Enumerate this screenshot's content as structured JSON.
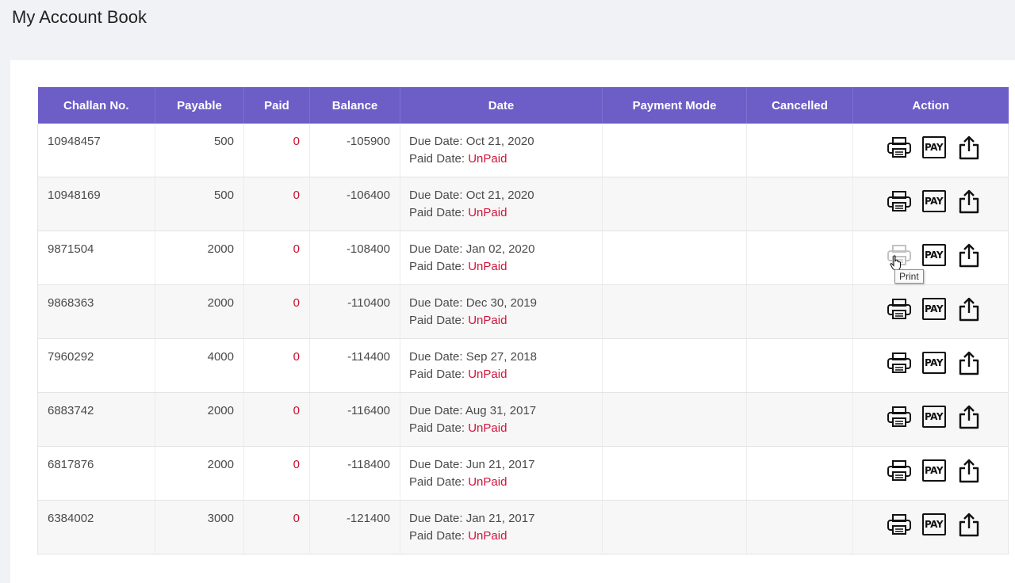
{
  "page": {
    "title": "My Account Book"
  },
  "table": {
    "headers": {
      "challan": "Challan No.",
      "payable": "Payable",
      "paid": "Paid",
      "balance": "Balance",
      "date": "Date",
      "payment_mode": "Payment Mode",
      "cancelled": "Cancelled",
      "action": "Action"
    },
    "due_label": "Due Date: ",
    "paid_label": "Paid Date: ",
    "pay_label": "PAY",
    "rows": [
      {
        "challan": "10948457",
        "payable": "500",
        "paid": "0",
        "balance": "-105900",
        "due_date": "Oct 21, 2020",
        "paid_date": "UnPaid",
        "payment_mode": "",
        "cancelled": ""
      },
      {
        "challan": "10948169",
        "payable": "500",
        "paid": "0",
        "balance": "-106400",
        "due_date": "Oct 21, 2020",
        "paid_date": "UnPaid",
        "payment_mode": "",
        "cancelled": ""
      },
      {
        "challan": "9871504",
        "payable": "2000",
        "paid": "0",
        "balance": "-108400",
        "due_date": "Jan 02, 2020",
        "paid_date": "UnPaid",
        "payment_mode": "",
        "cancelled": ""
      },
      {
        "challan": "9868363",
        "payable": "2000",
        "paid": "0",
        "balance": "-110400",
        "due_date": "Dec 30, 2019",
        "paid_date": "UnPaid",
        "payment_mode": "",
        "cancelled": ""
      },
      {
        "challan": "7960292",
        "payable": "4000",
        "paid": "0",
        "balance": "-114400",
        "due_date": "Sep 27, 2018",
        "paid_date": "UnPaid",
        "payment_mode": "",
        "cancelled": ""
      },
      {
        "challan": "6883742",
        "payable": "2000",
        "paid": "0",
        "balance": "-116400",
        "due_date": "Aug 31, 2017",
        "paid_date": "UnPaid",
        "payment_mode": "",
        "cancelled": ""
      },
      {
        "challan": "6817876",
        "payable": "2000",
        "paid": "0",
        "balance": "-118400",
        "due_date": "Jun 21, 2017",
        "paid_date": "UnPaid",
        "payment_mode": "",
        "cancelled": ""
      },
      {
        "challan": "6384002",
        "payable": "3000",
        "paid": "0",
        "balance": "-121400",
        "due_date": "Jan 21, 2017",
        "paid_date": "UnPaid",
        "payment_mode": "",
        "cancelled": ""
      }
    ]
  },
  "tooltip": {
    "text": "Print"
  },
  "icons": {
    "print": "printer-icon",
    "pay": "pay-icon",
    "share": "share-icon"
  },
  "colors": {
    "header_bg": "#6c5dc7",
    "unpaid": "#d3133a"
  }
}
